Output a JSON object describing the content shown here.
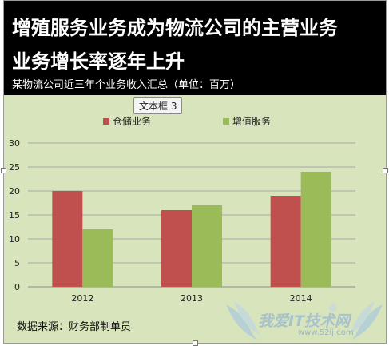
{
  "header": {
    "title_line1": "增殖服务业务成为物流公司的主营业务",
    "title_line2": "业务增长率逐年上升",
    "subtitle": "某物流公司近三年个业务收入汇总（单位：百万）"
  },
  "textbox_label": "文本框 3",
  "source_note": "数据来源：财务部制单员",
  "watermark": {
    "text": "我爱IT技术网",
    "url": "www.52ij.com"
  },
  "colors": {
    "header_bg": "#000000",
    "plot_bg": "#d8e4bc",
    "series_warehouse": "#c0504d",
    "series_value_added": "#9bbb59"
  },
  "chart_data": {
    "type": "bar",
    "title": "",
    "xlabel": "",
    "ylabel": "",
    "categories": [
      "2012",
      "2013",
      "2014"
    ],
    "series": [
      {
        "name": "仓储业务",
        "values": [
          20,
          16,
          19
        ],
        "color": "#c0504d"
      },
      {
        "name": "增值服务",
        "values": [
          12,
          17,
          24
        ],
        "color": "#9bbb59"
      }
    ],
    "ylim": [
      0,
      30
    ],
    "yticks": [
      0,
      5,
      10,
      15,
      20,
      25,
      30
    ],
    "grid": true,
    "legend": "top-center"
  }
}
